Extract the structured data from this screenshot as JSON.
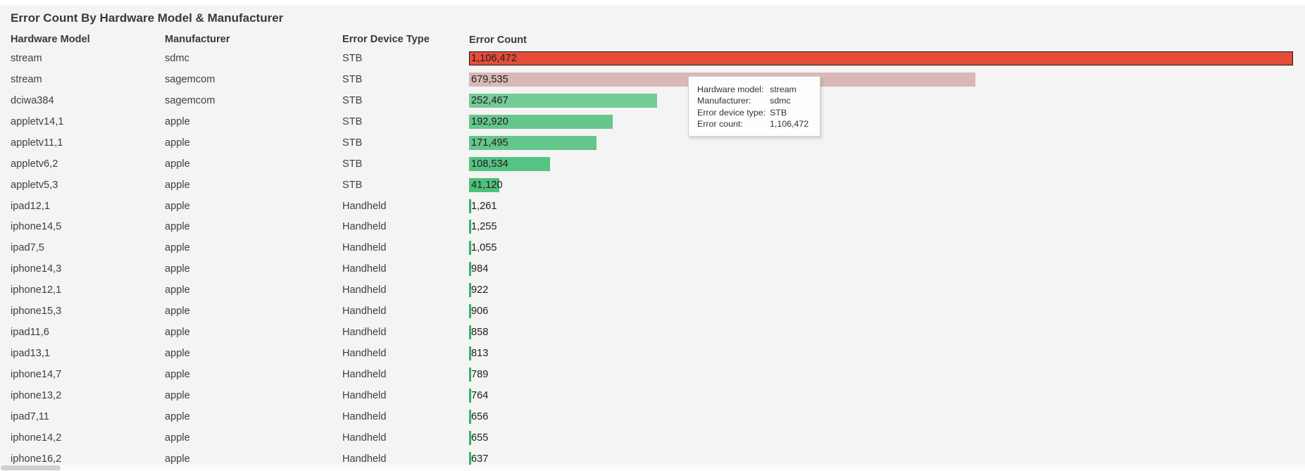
{
  "page": {
    "title": "Error Count By Hardware Model & Manufacturer",
    "background_color": "#f4f4f4"
  },
  "columns": [
    {
      "label": "Hardware Model"
    },
    {
      "label": "Manufacturer"
    },
    {
      "label": "Error Device Type"
    },
    {
      "label": "Error Count"
    }
  ],
  "rows": [
    {
      "model": "stream",
      "manufacturer": "sdmc",
      "device_type": "STB",
      "count": 1106472,
      "count_label": "1,106,472",
      "bar_color": "#e54d3b",
      "highlighted": true
    },
    {
      "model": "stream",
      "manufacturer": "sagemcom",
      "device_type": "STB",
      "count": 679535,
      "count_label": "679,535",
      "bar_color": "#d9b8b5",
      "highlighted": false
    },
    {
      "model": "dciwa384",
      "manufacturer": "sagemcom",
      "device_type": "STB",
      "count": 252467,
      "count_label": "252,467",
      "bar_color": "#75cb97",
      "highlighted": false
    },
    {
      "model": "appletv14,1",
      "manufacturer": "apple",
      "device_type": "STB",
      "count": 192920,
      "count_label": "192,920",
      "bar_color": "#66c78d",
      "highlighted": false
    },
    {
      "model": "appletv11,1",
      "manufacturer": "apple",
      "device_type": "STB",
      "count": 171495,
      "count_label": "171,495",
      "bar_color": "#63c68b",
      "highlighted": false
    },
    {
      "model": "appletv6,2",
      "manufacturer": "apple",
      "device_type": "STB",
      "count": 108534,
      "count_label": "108,534",
      "bar_color": "#55c382",
      "highlighted": false
    },
    {
      "model": "appletv5,3",
      "manufacturer": "apple",
      "device_type": "STB",
      "count": 41120,
      "count_label": "41,120",
      "bar_color": "#4ec07b",
      "highlighted": false
    },
    {
      "model": "ipad12,1",
      "manufacturer": "apple",
      "device_type": "Handheld",
      "count": 1261,
      "count_label": "1,261",
      "bar_color": "#2eb563",
      "highlighted": false
    },
    {
      "model": "iphone14,5",
      "manufacturer": "apple",
      "device_type": "Handheld",
      "count": 1255,
      "count_label": "1,255",
      "bar_color": "#2eb563",
      "highlighted": false
    },
    {
      "model": "ipad7,5",
      "manufacturer": "apple",
      "device_type": "Handheld",
      "count": 1055,
      "count_label": "1,055",
      "bar_color": "#2eb563",
      "highlighted": false
    },
    {
      "model": "iphone14,3",
      "manufacturer": "apple",
      "device_type": "Handheld",
      "count": 984,
      "count_label": "984",
      "bar_color": "#2eb563",
      "highlighted": false
    },
    {
      "model": "iphone12,1",
      "manufacturer": "apple",
      "device_type": "Handheld",
      "count": 922,
      "count_label": "922",
      "bar_color": "#2eb563",
      "highlighted": false
    },
    {
      "model": "iphone15,3",
      "manufacturer": "apple",
      "device_type": "Handheld",
      "count": 906,
      "count_label": "906",
      "bar_color": "#2eb563",
      "highlighted": false
    },
    {
      "model": "ipad11,6",
      "manufacturer": "apple",
      "device_type": "Handheld",
      "count": 858,
      "count_label": "858",
      "bar_color": "#2eb563",
      "highlighted": false
    },
    {
      "model": "ipad13,1",
      "manufacturer": "apple",
      "device_type": "Handheld",
      "count": 813,
      "count_label": "813",
      "bar_color": "#2eb563",
      "highlighted": false
    },
    {
      "model": "iphone14,7",
      "manufacturer": "apple",
      "device_type": "Handheld",
      "count": 789,
      "count_label": "789",
      "bar_color": "#2eb563",
      "highlighted": false
    },
    {
      "model": "iphone13,2",
      "manufacturer": "apple",
      "device_type": "Handheld",
      "count": 764,
      "count_label": "764",
      "bar_color": "#2eb563",
      "highlighted": false
    },
    {
      "model": "ipad7,11",
      "manufacturer": "apple",
      "device_type": "Handheld",
      "count": 656,
      "count_label": "656",
      "bar_color": "#2eb563",
      "highlighted": false
    },
    {
      "model": "iphone14,2",
      "manufacturer": "apple",
      "device_type": "Handheld",
      "count": 655,
      "count_label": "655",
      "bar_color": "#2eb563",
      "highlighted": false
    },
    {
      "model": "iphone16,2",
      "manufacturer": "apple",
      "device_type": "Handheld",
      "count": 637,
      "count_label": "637",
      "bar_color": "#2eb563",
      "highlighted": false
    }
  ],
  "tooltip": {
    "rows": [
      {
        "label": "Hardware model:",
        "value": "stream"
      },
      {
        "label": "Manufacturer:",
        "value": "sdmc"
      },
      {
        "label": "Error device type:",
        "value": "STB"
      },
      {
        "label": "Error count:",
        "value": "1,106,472"
      }
    ]
  },
  "chart_data": {
    "type": "bar",
    "orientation": "horizontal",
    "title": "Error Count By Hardware Model & Manufacturer",
    "categories": [
      "stream | sdmc",
      "stream | sagemcom",
      "dciwa384 | sagemcom",
      "appletv14,1 | apple",
      "appletv11,1 | apple",
      "appletv6,2 | apple",
      "appletv5,3 | apple",
      "ipad12,1 | apple",
      "iphone14,5 | apple",
      "ipad7,5 | apple",
      "iphone14,3 | apple",
      "iphone12,1 | apple",
      "iphone15,3 | apple",
      "ipad11,6 | apple",
      "ipad13,1 | apple",
      "iphone14,7 | apple",
      "iphone13,2 | apple",
      "ipad7,11 | apple",
      "iphone14,2 | apple",
      "iphone16,2 | apple"
    ],
    "values": [
      1106472,
      679535,
      252467,
      192920,
      171495,
      108534,
      41120,
      1261,
      1255,
      1055,
      984,
      922,
      906,
      858,
      813,
      789,
      764,
      656,
      655,
      637
    ],
    "device_types": [
      "STB",
      "STB",
      "STB",
      "STB",
      "STB",
      "STB",
      "STB",
      "Handheld",
      "Handheld",
      "Handheld",
      "Handheld",
      "Handheld",
      "Handheld",
      "Handheld",
      "Handheld",
      "Handheld",
      "Handheld",
      "Handheld",
      "Handheld",
      "Handheld"
    ],
    "xlabel": "Error Count",
    "xlim": [
      0,
      1106472
    ],
    "legend_position": "none",
    "grid": false,
    "notes": "value labels drawn at left of each bar; first bar hovered (outlined) with tooltip"
  }
}
